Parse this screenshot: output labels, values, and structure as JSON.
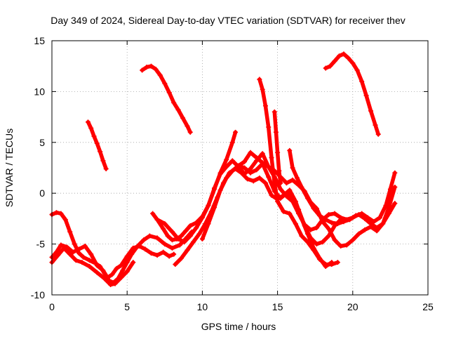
{
  "chart_data": {
    "type": "scatter",
    "title": "Day 349 of 2024, Sidereal Day-to-day VTEC variation (SDTVAR) for receiver thev",
    "xlabel": "GPS time / hours",
    "ylabel": "SDTVAR / TECUs",
    "xlim": [
      0,
      25
    ],
    "ylim": [
      -10,
      15
    ],
    "xticks": [
      0,
      5,
      10,
      15,
      20,
      25
    ],
    "yticks": [
      -10,
      -5,
      0,
      5,
      10,
      15
    ],
    "grid": true,
    "marker": "+",
    "color": "#ff0000",
    "series": [
      {
        "name": "arc-1",
        "x": [
          0.0,
          0.3,
          0.6,
          0.9,
          1.2,
          1.5,
          1.8,
          2.1,
          2.5,
          2.9,
          3.2,
          3.5,
          3.8,
          4.1,
          4.4,
          4.7,
          5.0,
          5.3,
          5.7,
          6.1,
          6.5,
          7.0,
          7.5,
          8.0,
          8.5,
          9.0,
          9.3
        ],
        "y": [
          -2.1,
          -1.9,
          -2.0,
          -2.6,
          -3.8,
          -5.0,
          -5.9,
          -6.3,
          -6.6,
          -6.9,
          -7.2,
          -7.9,
          -8.6,
          -8.8,
          -8.4,
          -7.6,
          -6.8,
          -6.0,
          -5.2,
          -4.6,
          -4.2,
          -4.4,
          -5.0,
          -5.4,
          -5.1,
          -4.3,
          -3.8
        ]
      },
      {
        "name": "arc-2",
        "x": [
          0.0,
          0.3,
          0.6,
          1.0,
          1.4,
          1.8,
          2.2,
          2.6,
          3.0,
          3.4,
          3.7,
          4.0,
          4.3,
          4.6,
          5.0,
          5.4,
          5.8,
          6.2,
          6.6,
          7.0,
          7.4,
          7.8,
          8.1
        ],
        "y": [
          -6.3,
          -5.8,
          -5.1,
          -5.3,
          -5.8,
          -5.5,
          -5.2,
          -6.0,
          -7.1,
          -7.6,
          -8.3,
          -8.0,
          -7.4,
          -7.1,
          -6.2,
          -5.4,
          -5.2,
          -5.5,
          -5.9,
          -6.1,
          -5.8,
          -6.2,
          -6.0
        ]
      },
      {
        "name": "arc-3",
        "x": [
          0.0,
          0.4,
          0.8,
          1.2,
          1.6,
          2.0,
          2.5,
          3.0,
          3.5,
          3.9,
          4.2,
          4.6,
          5.0,
          5.4
        ],
        "y": [
          -6.8,
          -6.1,
          -5.4,
          -6.0,
          -6.6,
          -6.8,
          -7.2,
          -7.8,
          -8.4,
          -9.0,
          -8.9,
          -8.3,
          -7.7,
          -6.8
        ]
      },
      {
        "name": "arc-4",
        "x": [
          2.4,
          2.6,
          2.8,
          3.0,
          3.2,
          3.4,
          3.6
        ],
        "y": [
          7.0,
          6.4,
          5.6,
          4.9,
          4.1,
          3.2,
          2.4
        ]
      },
      {
        "name": "arc-5",
        "x": [
          6.0,
          6.3,
          6.6,
          6.9,
          7.2,
          7.5,
          7.8,
          8.1,
          8.4,
          8.7,
          9.0,
          9.2
        ],
        "y": [
          12.1,
          12.4,
          12.5,
          12.2,
          11.6,
          10.8,
          9.9,
          8.9,
          8.2,
          7.4,
          6.6,
          6.0
        ]
      },
      {
        "name": "arc-6",
        "x": [
          6.7,
          7.0,
          7.4,
          7.7,
          8.0,
          8.3,
          8.6,
          8.9,
          9.2,
          9.6,
          10.0,
          10.4,
          10.8,
          11.2,
          11.6,
          12.0,
          12.2
        ],
        "y": [
          -2.0,
          -2.6,
          -3.5,
          -4.2,
          -4.6,
          -4.5,
          -4.2,
          -3.7,
          -3.2,
          -2.9,
          -2.3,
          -1.2,
          0.4,
          2.0,
          3.3,
          5.0,
          6.0
        ]
      },
      {
        "name": "arc-7",
        "x": [
          7.0,
          7.5,
          8.0,
          8.4,
          8.8,
          9.2,
          9.6,
          10.0,
          10.4,
          10.8,
          11.2,
          11.6,
          12.0,
          12.4,
          12.8,
          13.2,
          13.6,
          14.0,
          14.4,
          14.8,
          15.2,
          15.6,
          16.0,
          16.4,
          16.8,
          17.2,
          17.6,
          18.0,
          18.4,
          18.8,
          19.2,
          19.6,
          20.0,
          20.4,
          20.8,
          21.2,
          21.6,
          22.0,
          22.4,
          22.8
        ],
        "y": [
          -2.6,
          -3.0,
          -3.8,
          -4.5,
          -4.8,
          -4.2,
          -3.4,
          -2.4,
          -1.2,
          0.5,
          1.9,
          2.6,
          3.2,
          2.6,
          1.9,
          2.4,
          3.2,
          3.9,
          2.6,
          1.6,
          0.4,
          -0.3,
          -0.8,
          -2.0,
          -3.1,
          -3.6,
          -3.4,
          -2.6,
          -2.1,
          -2.0,
          -2.4,
          -2.6,
          -2.4,
          -2.1,
          -2.5,
          -3.0,
          -3.4,
          -3.0,
          -2.0,
          -1.0
        ]
      },
      {
        "name": "arc-8",
        "x": [
          8.2,
          8.6,
          9.0,
          9.4,
          9.8,
          10.2,
          10.6,
          11.0,
          11.4,
          11.8,
          12.2,
          12.6,
          13.0,
          13.4,
          13.8,
          14.2,
          14.6,
          15.0,
          15.4,
          15.8,
          16.2,
          16.6,
          17.0,
          17.4,
          17.8,
          18.2,
          18.6
        ],
        "y": [
          -7.0,
          -6.4,
          -5.6,
          -4.8,
          -4.0,
          -3.0,
          -1.8,
          -0.4,
          1.0,
          2.0,
          2.4,
          2.0,
          1.4,
          1.2,
          1.5,
          1.0,
          -0.2,
          -0.6,
          -0.2,
          0.3,
          -0.8,
          -2.5,
          -4.0,
          -5.4,
          -6.4,
          -7.2,
          -6.8
        ]
      },
      {
        "name": "arc-9",
        "x": [
          10.0,
          10.4,
          10.8,
          11.2,
          11.6,
          12.0,
          12.4,
          12.8,
          13.2,
          13.6,
          14.0,
          14.4,
          14.8,
          15.2,
          15.6,
          16.0,
          16.4,
          16.8,
          17.2,
          17.6,
          18.0,
          18.4,
          18.8,
          19.2
        ],
        "y": [
          -4.5,
          -3.0,
          -1.4,
          0.3,
          1.5,
          2.2,
          2.7,
          2.5,
          2.0,
          2.3,
          2.9,
          1.6,
          0.2,
          -0.5,
          0.0,
          -0.6,
          -1.6,
          -3.2,
          -4.4,
          -5.0,
          -4.8,
          -4.2,
          -3.2,
          -2.6
        ]
      },
      {
        "name": "arc-10",
        "x": [
          12.0,
          12.4,
          12.8,
          13.2,
          13.6,
          14.0,
          14.4,
          14.8,
          15.2,
          15.6,
          16.0,
          16.4,
          16.8,
          17.2,
          17.6,
          18.0,
          18.4,
          18.8,
          19.2,
          19.6,
          20.0,
          20.4,
          20.8,
          21.2,
          21.6,
          22.0,
          22.4,
          22.8
        ],
        "y": [
          2.2,
          2.7,
          3.1,
          4.0,
          3.5,
          3.0,
          2.6,
          2.2,
          1.6,
          1.0,
          1.3,
          0.8,
          0.2,
          -0.9,
          -1.5,
          -2.8,
          -3.5,
          -4.6,
          -5.2,
          -5.1,
          -4.6,
          -4.0,
          -3.6,
          -3.3,
          -3.7,
          -3.0,
          -1.4,
          0.6
        ]
      },
      {
        "name": "arc-11",
        "x": [
          13.8,
          14.0,
          14.2,
          14.4,
          14.6,
          14.8,
          15.0,
          15.4,
          15.8,
          16.2,
          16.6,
          17.0,
          17.4,
          17.8,
          18.2,
          18.6,
          19.0
        ],
        "y": [
          11.2,
          10.2,
          8.6,
          6.5,
          3.5,
          1.0,
          -0.8,
          -1.8,
          -2.0,
          -3.0,
          -4.2,
          -4.8,
          -5.6,
          -6.5,
          -7.0,
          -7.0,
          -6.8
        ]
      },
      {
        "name": "arc-12",
        "x": [
          14.8,
          14.9,
          15.0,
          15.1,
          15.2
        ],
        "y": [
          8.0,
          6.0,
          4.0,
          2.2,
          1.0
        ]
      },
      {
        "name": "arc-13",
        "x": [
          15.8,
          16.0,
          16.3,
          16.6,
          17.0,
          17.4,
          17.8,
          18.2,
          18.6,
          19.0,
          19.4,
          19.8,
          20.2,
          20.6,
          21.0,
          21.4,
          21.8,
          22.2,
          22.5,
          22.8
        ],
        "y": [
          4.2,
          2.5,
          1.5,
          0.6,
          -0.5,
          -1.5,
          -2.2,
          -2.6,
          -2.9,
          -3.0,
          -2.8,
          -2.6,
          -2.2,
          -2.0,
          -2.4,
          -2.8,
          -2.4,
          -1.2,
          0.4,
          2.0
        ]
      },
      {
        "name": "arc-14",
        "x": [
          18.2,
          18.5,
          18.8,
          19.1,
          19.4,
          19.7,
          20.0,
          20.3,
          20.6,
          20.9,
          21.2,
          21.5,
          21.7
        ],
        "y": [
          12.3,
          12.5,
          13.0,
          13.5,
          13.7,
          13.3,
          12.8,
          12.1,
          11.0,
          9.6,
          8.1,
          6.7,
          5.8
        ]
      }
    ]
  }
}
